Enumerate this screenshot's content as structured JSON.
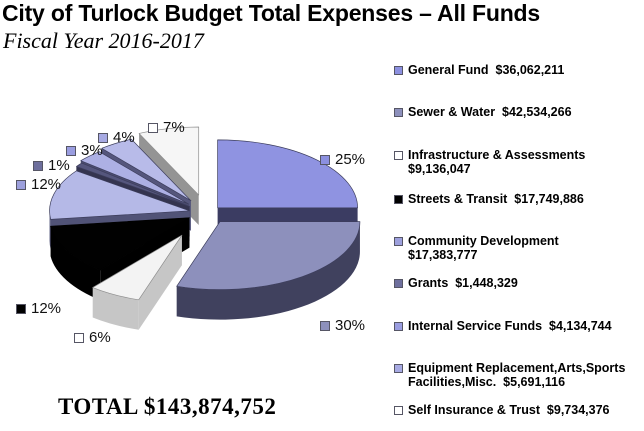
{
  "header": {
    "title": "City of Turlock Budget Total Expenses – All Funds",
    "subtitle": "Fiscal Year 2016-2017"
  },
  "total_label": "TOTAL $143,874,752",
  "chart_data": {
    "type": "pie",
    "title": "City of Turlock Budget Total Expenses – All Funds",
    "subtitle": "Fiscal Year 2016-2017",
    "effect": "3d-exploded",
    "legend_position": "right",
    "total_value": 143874752,
    "total_display": "TOTAL $143,874,752",
    "slices": [
      {
        "label": "General Fund",
        "value": 36062211,
        "value_display": "$36,062,211",
        "percent": 25,
        "percent_label": "25%",
        "color_top": "#8f93e1",
        "color_side": "#3b3c62",
        "color_marker": "#8c90e0"
      },
      {
        "label": "Sewer & Water",
        "value": 42534266,
        "value_display": "$42,534,266",
        "percent": 30,
        "percent_label": "30%",
        "color_top": "#8d90bc",
        "color_side": "#40415e",
        "color_marker": "#8d90bc"
      },
      {
        "label": "Infrastructure & Assessments",
        "value": 9136047,
        "value_display": "$9,136,047",
        "percent": 6,
        "percent_label": "6%",
        "color_top": "#f3f3f3",
        "color_side": "#c6c6c6",
        "color_marker": "#ffffff"
      },
      {
        "label": "Streets & Transit",
        "value": 17749886,
        "value_display": "$17,749,886",
        "percent": 12,
        "percent_label": "12%",
        "color_top": "#010101",
        "color_side": "#000000",
        "color_marker": "#000000"
      },
      {
        "label": "Community Development",
        "value": 17383777,
        "value_display": "$17,383,777",
        "percent": 12,
        "percent_label": "12%",
        "color_top": "#b5b9e7",
        "color_side": "#515377",
        "color_marker": "#9da0dd"
      },
      {
        "label": "Grants",
        "value": 1448329,
        "value_display": "$1,448,329",
        "percent": 1,
        "percent_label": "1%",
        "color_top": "#55567d",
        "color_side": "#34344f",
        "color_marker": "#6e6f9d"
      },
      {
        "label": "Internal Service Funds",
        "value": 4134744,
        "value_display": "$4,134,744",
        "percent": 3,
        "percent_label": "3%",
        "color_top": "#adb0e4",
        "color_side": "#4b4c70",
        "color_marker": "#9a9de0"
      },
      {
        "label": "Equipment Replacement,Arts,Sports Facilities,Misc.",
        "value": 5691116,
        "value_display": "$5,691,116",
        "percent": 4,
        "percent_label": "4%",
        "color_top": "#b8bbe9",
        "color_side": "#55567c",
        "color_marker": "#a7aae3"
      },
      {
        "label": "Self Insurance & Trust",
        "value": 9734376,
        "value_display": "$9,734,376",
        "percent": 7,
        "percent_label": "7%",
        "color_top": "#f6f6f6",
        "color_side": "#949494",
        "color_marker": "#ffffff"
      }
    ]
  }
}
